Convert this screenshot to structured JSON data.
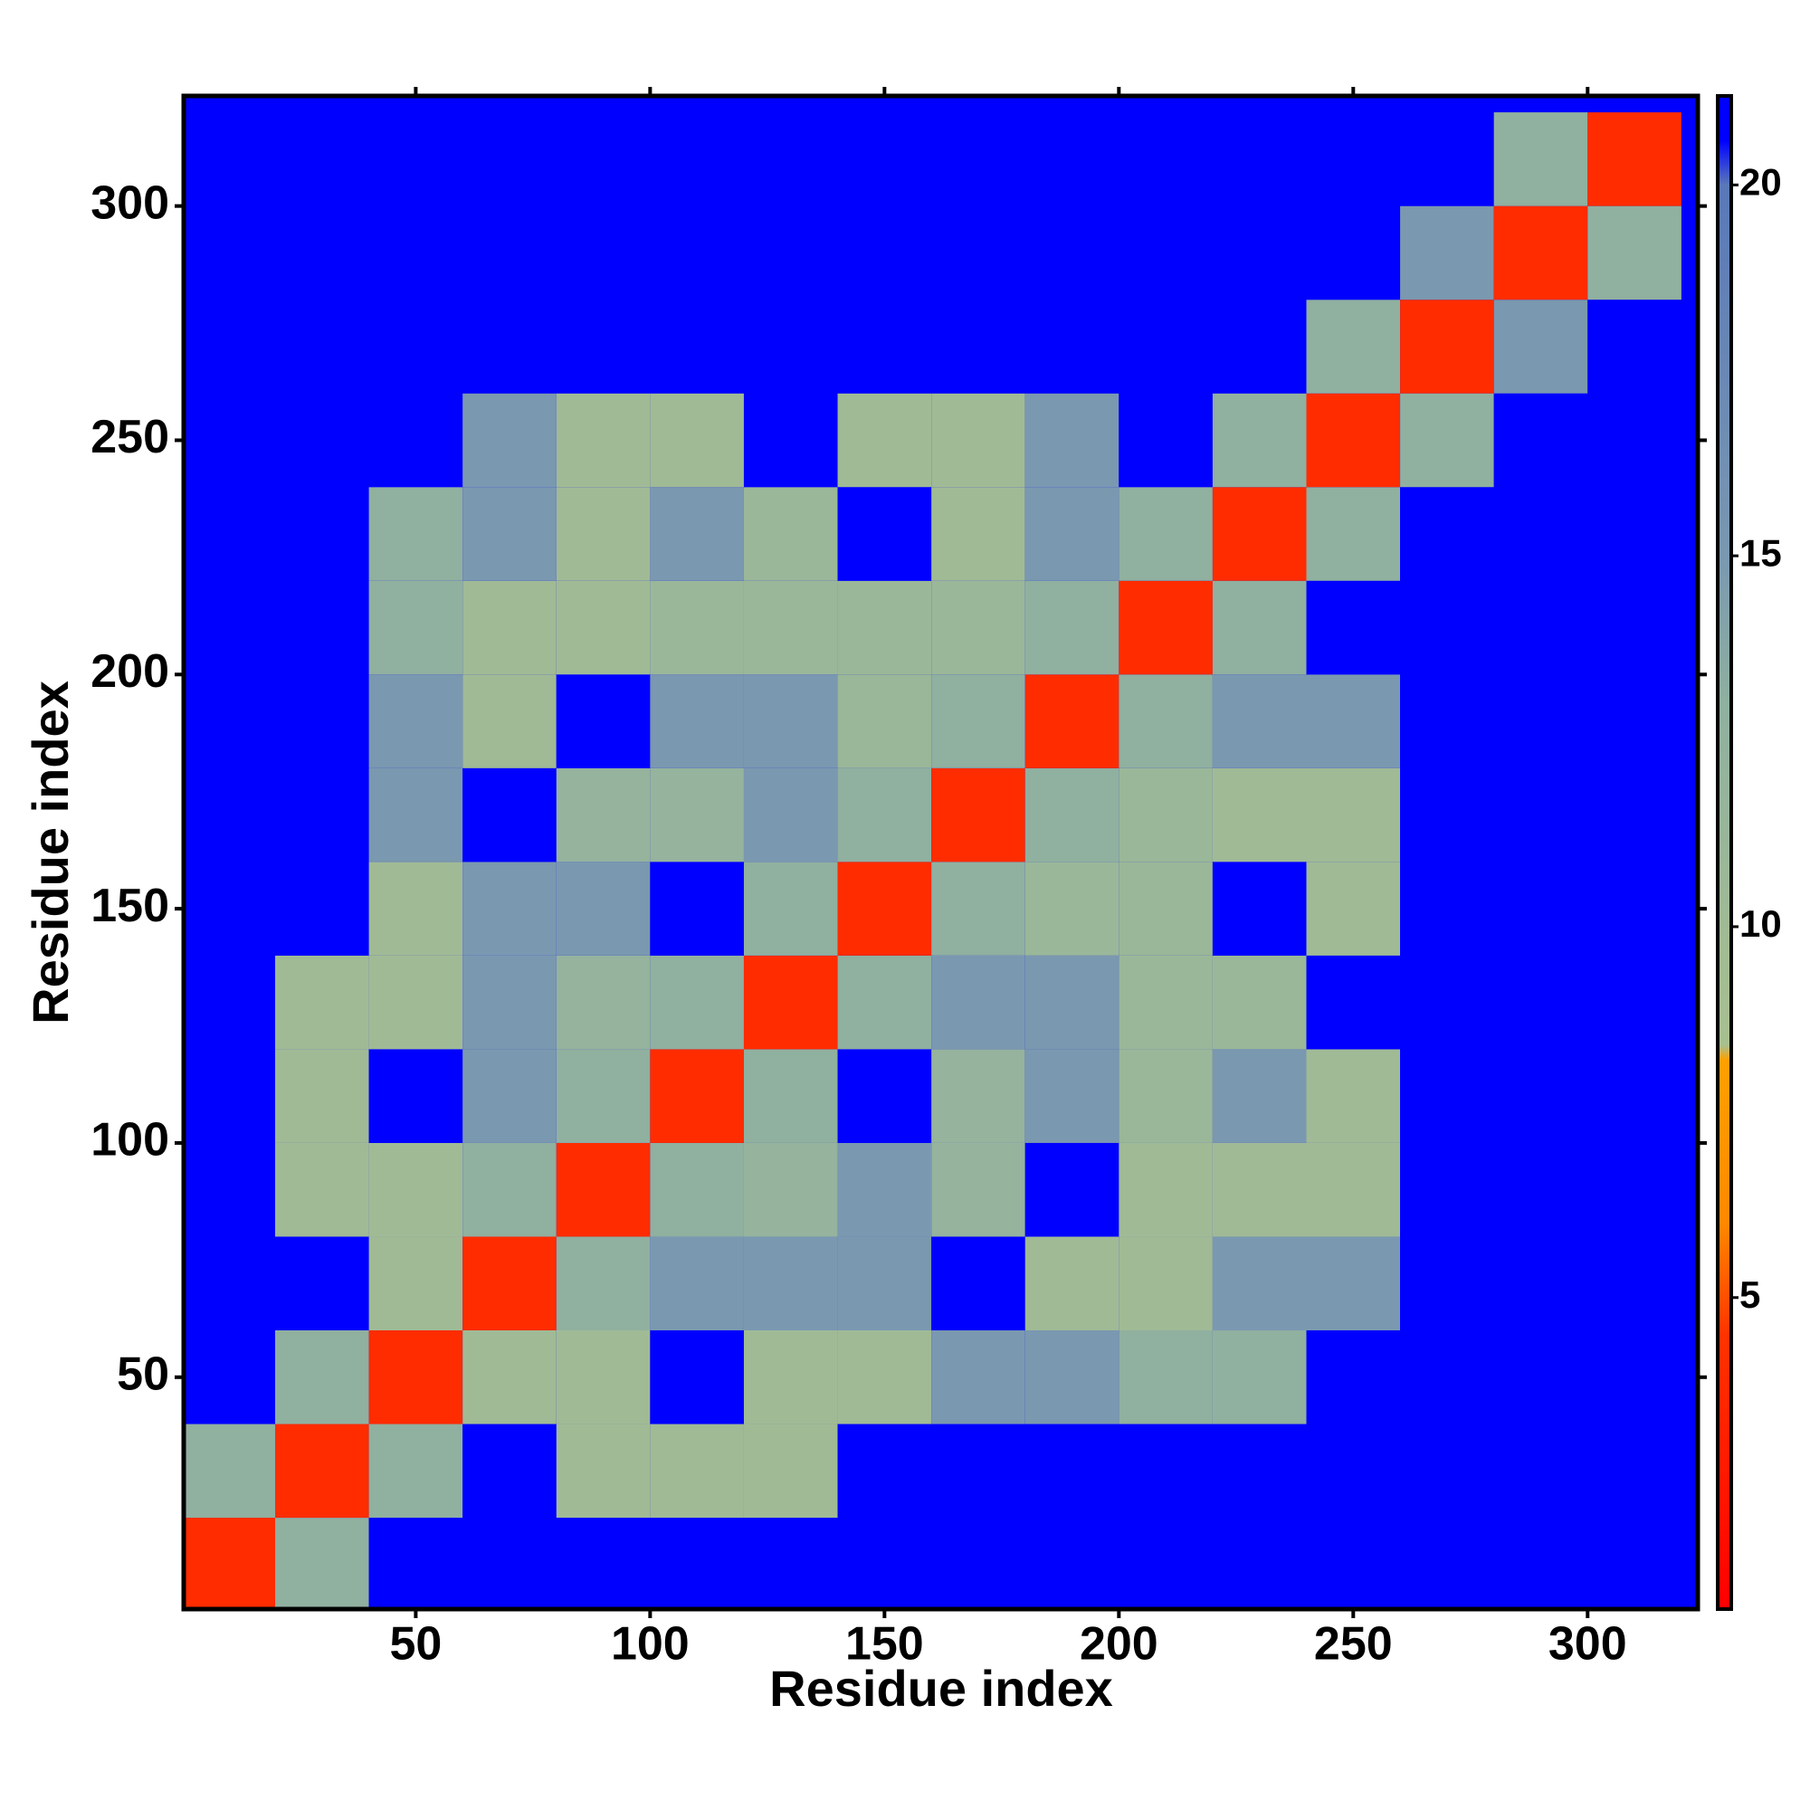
{
  "chart_data": {
    "type": "heatmap",
    "x_label": "Residue index",
    "y_label": "Residue index",
    "xlim": [
      0.5,
      323.5
    ],
    "ylim": [
      0.5,
      323.5
    ],
    "xticks": [
      50,
      100,
      150,
      200,
      250,
      300
    ],
    "yticks": [
      50,
      100,
      150,
      200,
      250,
      300
    ],
    "x_bins": [
      0,
      20,
      40,
      60,
      80,
      100,
      120,
      140,
      160,
      180,
      200,
      220,
      240,
      260,
      280,
      300,
      320
    ],
    "y_bins": [
      0,
      20,
      40,
      60,
      80,
      100,
      120,
      140,
      160,
      180,
      200,
      220,
      240,
      260,
      280,
      300,
      320
    ],
    "z": [
      [
        4,
        13,
        21,
        21,
        21,
        21,
        21,
        21,
        21,
        21,
        21,
        21,
        21,
        21,
        21,
        21
      ],
      [
        13,
        4,
        13,
        21,
        10,
        10,
        10,
        21,
        21,
        21,
        21,
        21,
        21,
        21,
        21,
        21
      ],
      [
        21,
        13,
        4,
        10,
        10,
        21,
        10,
        10,
        15,
        15,
        13,
        13,
        21,
        21,
        21,
        21
      ],
      [
        21,
        21,
        10,
        4,
        13,
        15,
        15,
        15,
        21,
        10,
        10,
        15,
        15,
        21,
        21,
        21
      ],
      [
        21,
        10,
        10,
        13,
        4,
        13,
        12,
        15,
        12,
        21,
        10,
        10,
        10,
        21,
        21,
        21
      ],
      [
        21,
        10,
        21,
        15,
        13,
        4,
        13,
        21,
        12,
        15,
        11,
        15,
        10,
        21,
        21,
        21
      ],
      [
        21,
        10,
        10,
        15,
        12,
        13,
        4,
        13,
        15,
        15,
        11,
        11,
        21,
        21,
        21,
        21
      ],
      [
        21,
        21,
        10,
        15,
        15,
        21,
        13,
        4,
        13,
        11,
        11,
        21,
        10,
        21,
        21,
        21
      ],
      [
        21,
        21,
        15,
        21,
        12,
        12,
        15,
        13,
        4,
        13,
        11,
        10,
        10,
        21,
        21,
        21
      ],
      [
        21,
        21,
        15,
        10,
        21,
        15,
        15,
        11,
        13,
        4,
        13,
        15,
        15,
        21,
        21,
        21
      ],
      [
        21,
        21,
        13,
        10,
        10,
        11,
        11,
        11,
        11,
        13,
        4,
        13,
        21,
        21,
        21,
        21
      ],
      [
        21,
        21,
        13,
        15,
        10,
        15,
        11,
        21,
        10,
        15,
        13,
        4,
        13,
        21,
        21,
        21
      ],
      [
        21,
        21,
        21,
        15,
        10,
        10,
        21,
        10,
        10,
        15,
        21,
        13,
        4,
        13,
        21,
        21
      ],
      [
        21,
        21,
        21,
        21,
        21,
        21,
        21,
        21,
        21,
        21,
        21,
        21,
        13,
        4,
        15,
        21
      ],
      [
        21,
        21,
        21,
        21,
        21,
        21,
        21,
        21,
        21,
        21,
        21,
        21,
        21,
        15,
        4,
        13
      ],
      [
        21,
        21,
        21,
        21,
        21,
        21,
        21,
        21,
        21,
        21,
        21,
        21,
        21,
        21,
        13,
        4
      ]
    ],
    "clim": [
      0.8,
      21.2
    ],
    "cticks": [
      5,
      10,
      15,
      20
    ],
    "colorscale": [
      [
        0.8,
        "#ff0000"
      ],
      [
        4.5,
        "#ff3300"
      ],
      [
        6,
        "#ff8800"
      ],
      [
        8.2,
        "#ffa000"
      ],
      [
        8.4,
        "#a8c090"
      ],
      [
        13,
        "#90b0a0"
      ],
      [
        15,
        "#7a98b0"
      ],
      [
        20,
        "#5a78b8"
      ],
      [
        20.6,
        "#0000ff"
      ],
      [
        21.2,
        "#0000ff"
      ]
    ]
  }
}
